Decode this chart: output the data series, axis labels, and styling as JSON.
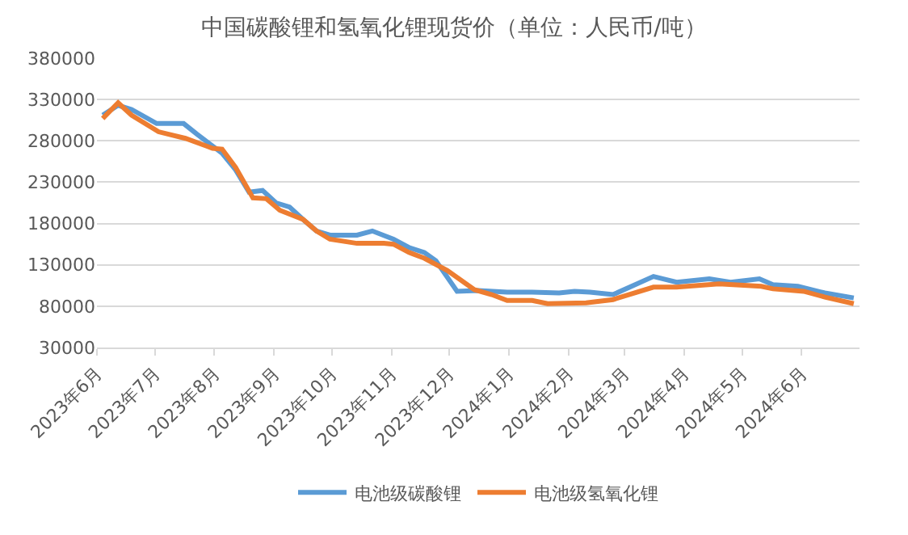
{
  "chart_data": {
    "type": "line",
    "title": "中国碳酸锂和氢氧化锂现货价（单位：人民币/吨）",
    "series": [
      {
        "name": "电池级碳酸锂",
        "color": "#5b9bd5",
        "x": [
          "2023-06-04",
          "2023-06-12",
          "2023-06-19",
          "2023-07-02",
          "2023-07-16",
          "2023-07-23",
          "2023-08-05",
          "2023-08-12",
          "2023-08-19",
          "2023-08-26",
          "2023-09-02",
          "2023-09-09",
          "2023-09-16",
          "2023-09-23",
          "2023-09-30",
          "2023-10-14",
          "2023-10-22",
          "2023-11-02",
          "2023-11-10",
          "2023-11-18",
          "2023-11-24",
          "2023-12-05",
          "2023-12-16",
          "2023-12-31",
          "2024-01-13",
          "2024-01-27",
          "2024-02-04",
          "2024-02-12",
          "2024-02-24",
          "2024-03-16",
          "2024-03-28",
          "2024-04-14",
          "2024-04-25",
          "2024-05-10",
          "2024-05-17",
          "2024-05-30",
          "2024-06-13",
          "2024-06-28"
        ],
        "values": [
          311000,
          323000,
          318000,
          301000,
          301000,
          288000,
          265000,
          245000,
          218000,
          220000,
          205000,
          200000,
          185000,
          171000,
          166000,
          166000,
          171000,
          161000,
          151000,
          145000,
          135000,
          98000,
          99000,
          97000,
          97000,
          96000,
          98000,
          97000,
          94000,
          116000,
          109000,
          113000,
          109000,
          113000,
          106000,
          104000,
          96000,
          90000
        ]
      },
      {
        "name": "电池级氢氧化锂",
        "color": "#ed7d31",
        "x": [
          "2023-06-04",
          "2023-06-12",
          "2023-06-19",
          "2023-07-03",
          "2023-07-17",
          "2023-07-31",
          "2023-08-05",
          "2023-08-12",
          "2023-08-21",
          "2023-08-28",
          "2023-09-04",
          "2023-09-16",
          "2023-09-23",
          "2023-09-30",
          "2023-10-14",
          "2023-10-28",
          "2023-11-02",
          "2023-11-10",
          "2023-11-18",
          "2023-11-30",
          "2023-12-14",
          "2023-12-23",
          "2023-12-31",
          "2024-01-13",
          "2024-01-21",
          "2024-02-10",
          "2024-02-24",
          "2024-03-16",
          "2024-03-28",
          "2024-04-19",
          "2024-05-11",
          "2024-05-17",
          "2024-06-02",
          "2024-06-13",
          "2024-06-28"
        ],
        "values": [
          307000,
          326000,
          311000,
          291000,
          283000,
          271000,
          270000,
          248000,
          211000,
          210000,
          196000,
          185000,
          171000,
          161000,
          156000,
          156000,
          155000,
          145000,
          138000,
          123000,
          100000,
          94000,
          87000,
          87000,
          83000,
          84000,
          88000,
          103000,
          103000,
          107000,
          104000,
          101000,
          98000,
          91000,
          83000
        ]
      }
    ],
    "xlim": [
      "2023-06-01",
      "2024-07-01"
    ],
    "xticks": [
      {
        "value": "2023-06-01",
        "label": "2023年6月"
      },
      {
        "value": "2023-07-01",
        "label": "2023年7月"
      },
      {
        "value": "2023-08-01",
        "label": "2023年8月"
      },
      {
        "value": "2023-09-01",
        "label": "2023年9月"
      },
      {
        "value": "2023-10-01",
        "label": "2023年10月"
      },
      {
        "value": "2023-11-01",
        "label": "2023年11月"
      },
      {
        "value": "2023-12-01",
        "label": "2023年12月"
      },
      {
        "value": "2024-01-01",
        "label": "2024年1月"
      },
      {
        "value": "2024-02-01",
        "label": "2024年2月"
      },
      {
        "value": "2024-03-01",
        "label": "2024年3月"
      },
      {
        "value": "2024-04-01",
        "label": "2024年4月"
      },
      {
        "value": "2024-05-01",
        "label": "2024年5月"
      },
      {
        "value": "2024-06-01",
        "label": "2024年6月"
      }
    ],
    "ylim": [
      30000,
      380000
    ],
    "yticks": [
      30000,
      80000,
      130000,
      180000,
      230000,
      280000,
      330000,
      380000
    ],
    "grid": "y",
    "legend": "bottom",
    "marker": "none",
    "line_style": "solid"
  }
}
